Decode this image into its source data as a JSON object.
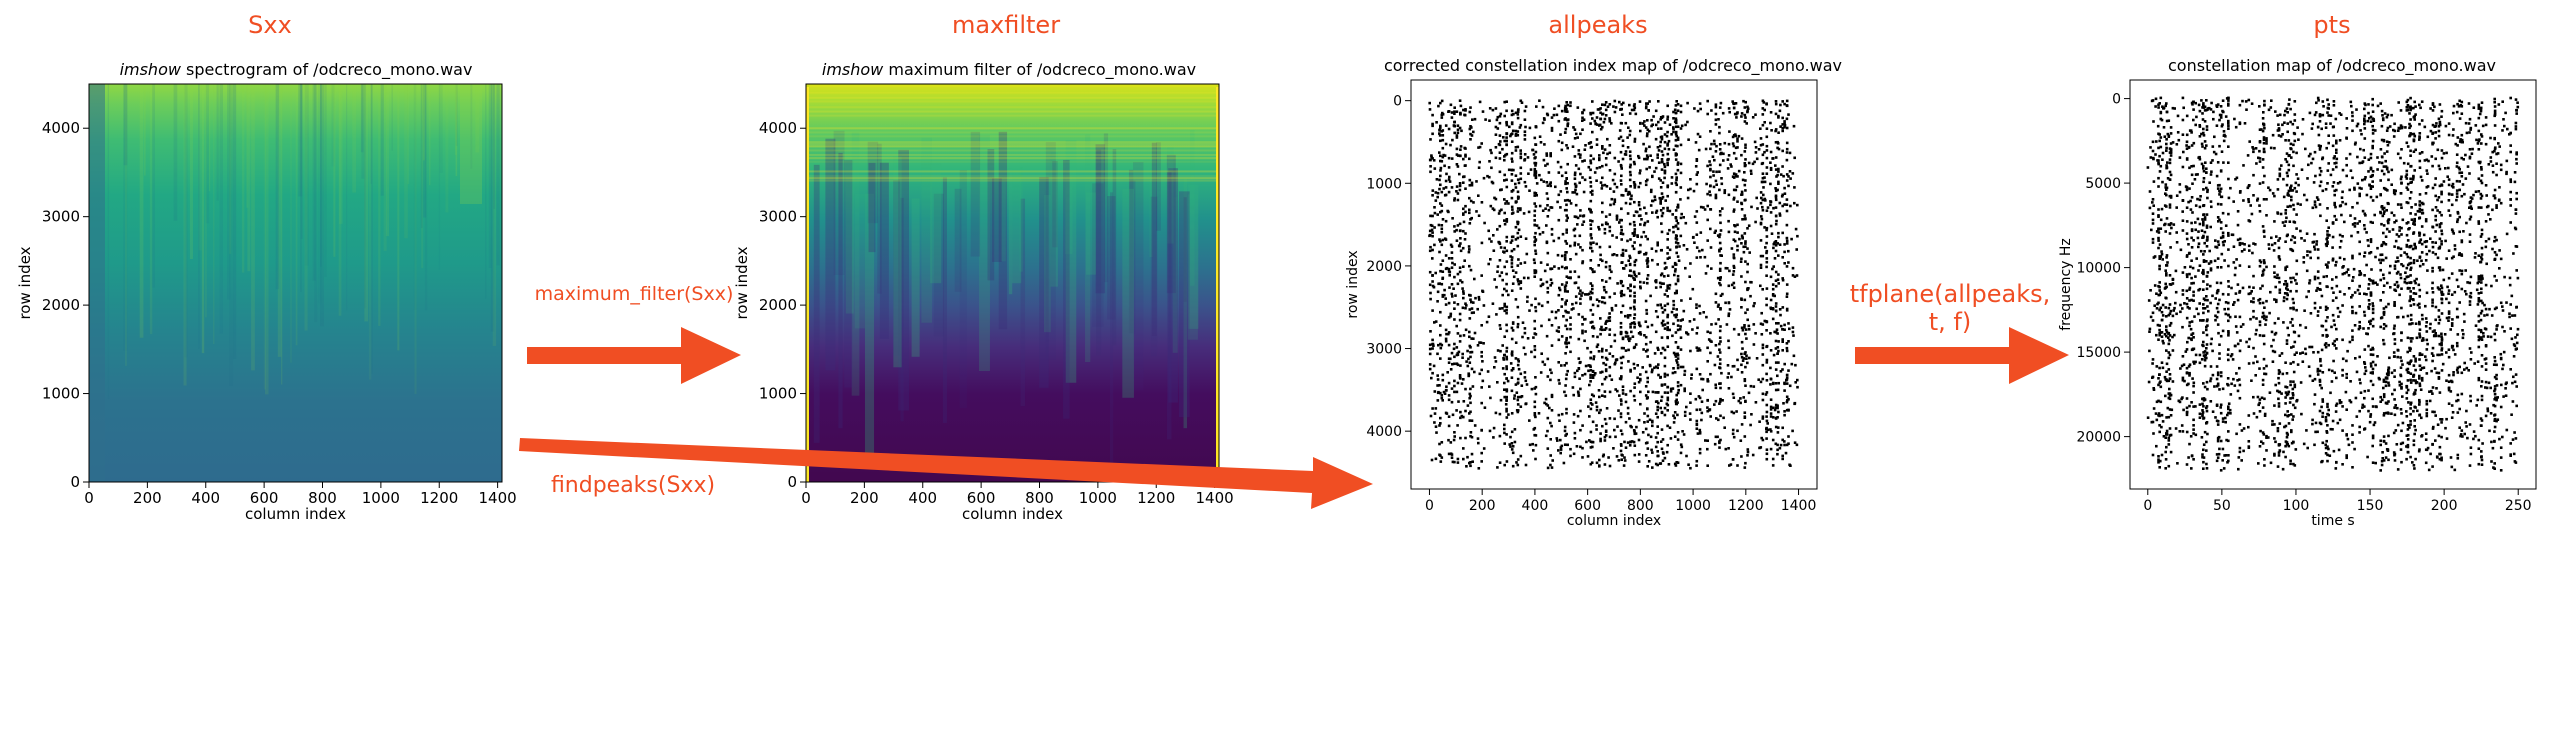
{
  "stage_labels": {
    "sxx": "Sxx",
    "maxfilter": "maxfilter",
    "allpeaks": "allpeaks",
    "pts": "pts"
  },
  "arrow_labels": {
    "maximum_filter": "maximum_filter(Sxx)",
    "findpeaks": "findpeaks(Sxx)",
    "tfplane_line1": "tfplane(allpeaks,",
    "tfplane_line2": "t, f)"
  },
  "colors": {
    "accent": "#f04e23",
    "viridis_yellow": "#fde725",
    "viridis_green": "#7ad151",
    "viridis_teal": "#2a788e",
    "viridis_blue": "#3b528b",
    "viridis_purple": "#440154",
    "points": "#000000"
  },
  "panels": [
    {
      "id": "sxx",
      "type": "heatmap",
      "title_italic": "imshow",
      "title_rest": " spectrogram of /odcreco_mono.wav",
      "xlabel": "column index",
      "ylabel": "row index",
      "xticks": [
        "0",
        "200",
        "400",
        "600",
        "800",
        "1000",
        "1200",
        "1400"
      ],
      "yticks": [
        "0",
        "1000",
        "2000",
        "3000",
        "4000"
      ]
    },
    {
      "id": "maxfilter",
      "type": "heatmap",
      "title_italic": "imshow",
      "title_rest": " maximum filter of /odcreco_mono.wav",
      "xlabel": "column index",
      "ylabel": "row index",
      "xticks": [
        "0",
        "200",
        "400",
        "600",
        "800",
        "1000",
        "1200",
        "1400"
      ],
      "yticks": [
        "0",
        "1000",
        "2000",
        "3000",
        "4000"
      ]
    },
    {
      "id": "allpeaks",
      "type": "scatter",
      "title_italic": "",
      "title_rest": "corrected constellation index map of /odcreco_mono.wav",
      "xlabel": "column index",
      "ylabel": "row index",
      "xticks": [
        "0",
        "200",
        "400",
        "600",
        "800",
        "1000",
        "1200",
        "1400"
      ],
      "yticks": [
        "0",
        "1000",
        "2000",
        "3000",
        "4000"
      ]
    },
    {
      "id": "pts",
      "type": "scatter",
      "title_italic": "",
      "title_rest": "constellation map of /odcreco_mono.wav",
      "xlabel": "time s",
      "ylabel": "frequency Hz",
      "xticks": [
        "0",
        "50",
        "100",
        "150",
        "200",
        "250"
      ],
      "yticks": [
        "0",
        "5000",
        "10000",
        "15000",
        "20000"
      ]
    }
  ],
  "chart_data": [
    {
      "type": "heatmap",
      "title": "imshow spectrogram of /odcreco_mono.wav",
      "xlabel": "column index",
      "ylabel": "row index",
      "xlim": [
        0,
        1400
      ],
      "ylim": [
        4500,
        0
      ],
      "colormap": "viridis"
    },
    {
      "type": "heatmap",
      "title": "imshow maximum filter of /odcreco_mono.wav",
      "xlabel": "column index",
      "ylabel": "row index",
      "xlim": [
        0,
        1400
      ],
      "ylim": [
        4500,
        0
      ],
      "colormap": "viridis"
    },
    {
      "type": "scatter",
      "title": "corrected constellation index map of /odcreco_mono.wav",
      "xlabel": "column index",
      "ylabel": "row index",
      "xlim": [
        -70,
        1470
      ],
      "ylim": [
        -250,
        4700
      ],
      "x_range": [
        0,
        1400
      ],
      "y_range": [
        0,
        4450
      ],
      "approx_points": 6000,
      "marker_color": "#000000"
    },
    {
      "type": "scatter",
      "title": "constellation map of /odcreco_mono.wav",
      "xlabel": "time s",
      "ylabel": "frequency Hz",
      "xlim": [
        -12,
        262
      ],
      "ylim": [
        -1100,
        23100
      ],
      "x_range": [
        0,
        250
      ],
      "y_range": [
        0,
        22050
      ],
      "approx_points": 6000,
      "marker_color": "#000000"
    }
  ]
}
